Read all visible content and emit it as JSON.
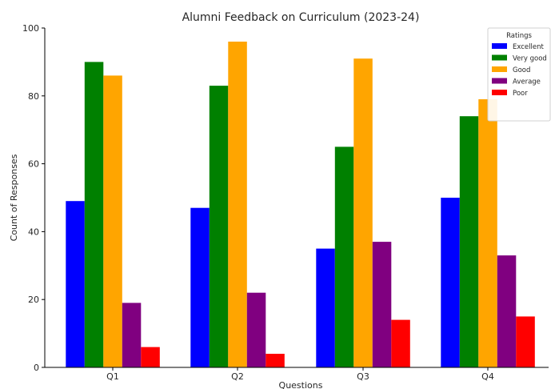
{
  "chart_data": {
    "type": "bar",
    "title": "Alumni Feedback on Curriculum (2023-24)",
    "xlabel": "Questions",
    "ylabel": "Count of Responses",
    "categories": [
      "Q1",
      "Q2",
      "Q3",
      "Q4"
    ],
    "ylim": [
      0,
      100
    ],
    "yticks": [
      0,
      20,
      40,
      60,
      80,
      100
    ],
    "grid": false,
    "legend": {
      "title": "Ratings",
      "placement": "top-right"
    },
    "series": [
      {
        "name": "Excellent",
        "color": "#0000ff",
        "values": [
          49,
          47,
          35,
          50
        ]
      },
      {
        "name": "Very good",
        "color": "#008000",
        "values": [
          90,
          83,
          65,
          74
        ]
      },
      {
        "name": "Good",
        "color": "#ffa500",
        "values": [
          86,
          96,
          91,
          79
        ]
      },
      {
        "name": "Average",
        "color": "#800080",
        "values": [
          19,
          22,
          37,
          33
        ]
      },
      {
        "name": "Poor",
        "color": "#ff0000",
        "values": [
          6,
          4,
          14,
          15
        ]
      }
    ]
  }
}
